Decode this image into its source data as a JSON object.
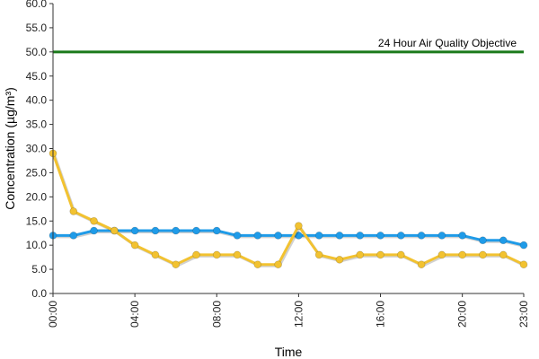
{
  "chart_data": {
    "type": "line",
    "xlabel": "Time",
    "ylabel": "Concentration (µg/m³)",
    "x": [
      "00:00",
      "01:00",
      "02:00",
      "03:00",
      "04:00",
      "05:00",
      "06:00",
      "07:00",
      "08:00",
      "09:00",
      "10:00",
      "11:00",
      "12:00",
      "13:00",
      "14:00",
      "15:00",
      "16:00",
      "17:00",
      "18:00",
      "19:00",
      "20:00",
      "21:00",
      "22:00",
      "23:00"
    ],
    "x_tick_labels": [
      "00:00",
      "04:00",
      "08:00",
      "12:00",
      "16:00",
      "20:00",
      "23:00"
    ],
    "x_tick_indices": [
      0,
      4,
      8,
      12,
      16,
      20,
      23
    ],
    "y_ticks": [
      "0.0",
      "5.0",
      "10.0",
      "15.0",
      "20.0",
      "25.0",
      "30.0",
      "35.0",
      "40.0",
      "45.0",
      "50.0",
      "55.0",
      "60.0"
    ],
    "ylim": [
      0,
      60
    ],
    "grid": false,
    "legend": "none",
    "series": [
      {
        "color": "#1f9be8",
        "values": [
          12,
          12,
          13,
          13,
          13,
          13,
          13,
          13,
          13,
          12,
          12,
          12,
          12,
          12,
          12,
          12,
          12,
          12,
          12,
          12,
          12,
          11,
          11,
          10
        ]
      },
      {
        "color": "#f2c230",
        "values": [
          29,
          17,
          15,
          13,
          10,
          8,
          6,
          8,
          8,
          8,
          6,
          6,
          14,
          8,
          7,
          8,
          8,
          8,
          6,
          8,
          8,
          8,
          8,
          6
        ]
      }
    ],
    "reference_line": {
      "value": 50,
      "label": "24 Hour Air Quality Objective",
      "color": "#1a7a1a"
    }
  }
}
